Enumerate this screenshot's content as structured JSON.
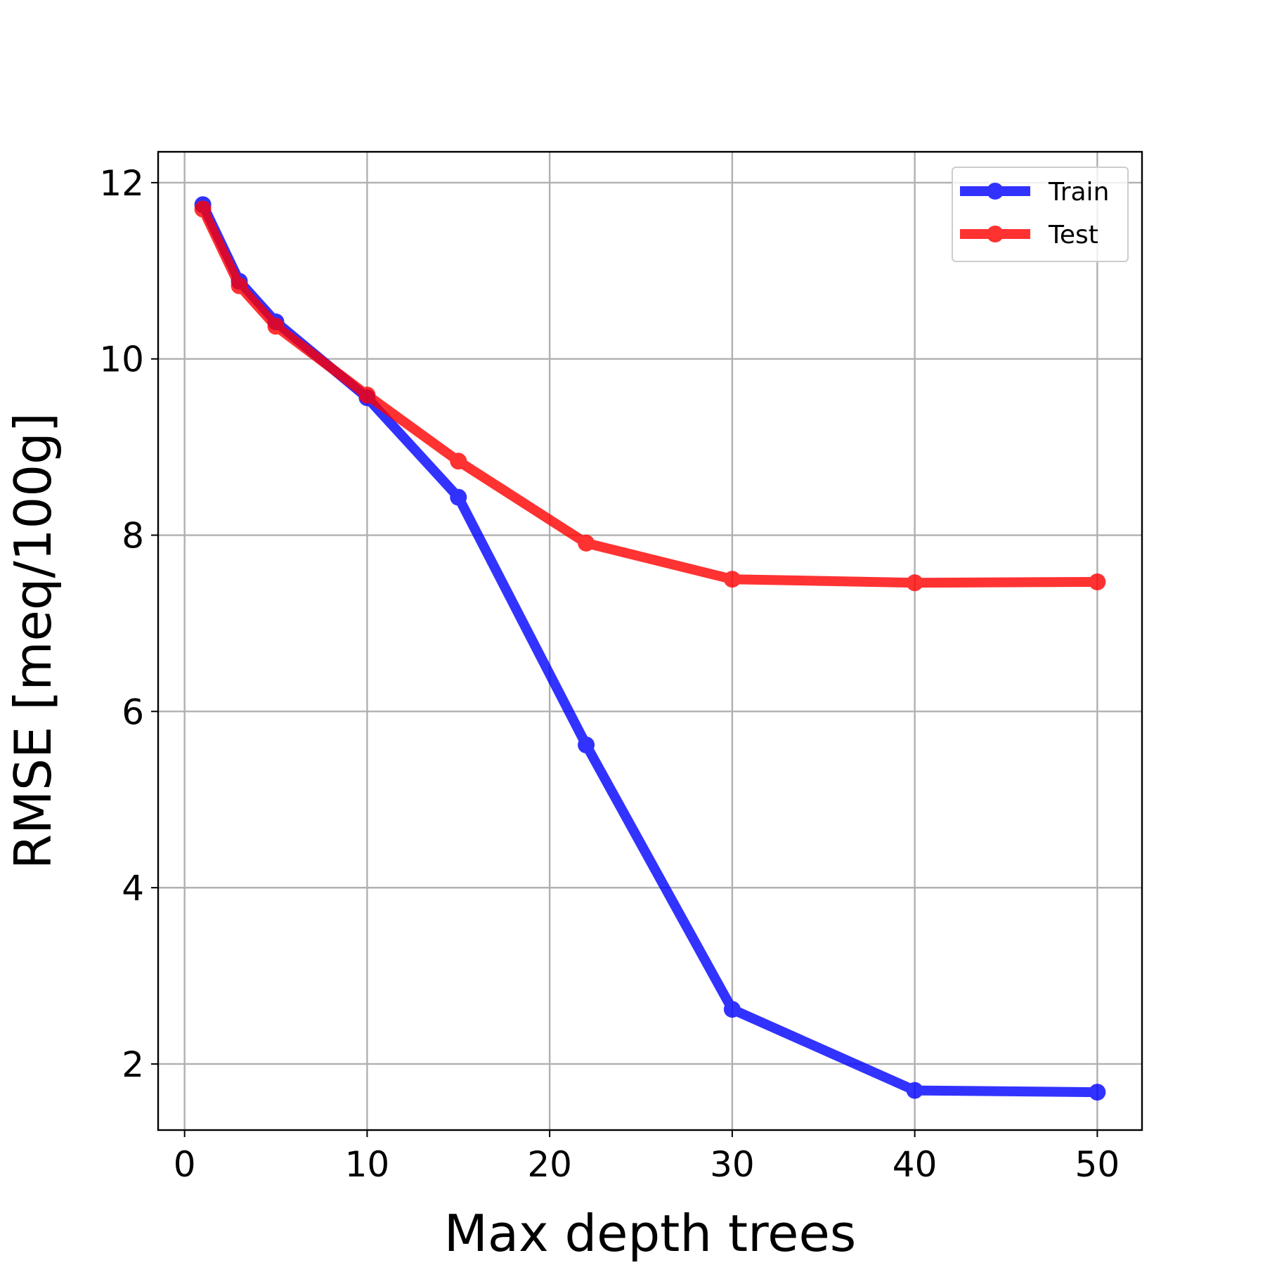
{
  "chart_data": {
    "type": "line",
    "title": "",
    "xlabel": "Max depth trees",
    "ylabel": "RMSE [meq/100g]",
    "xlim": [
      -1.45,
      52.45
    ],
    "ylim": [
      1.25,
      12.35
    ],
    "xticks": [
      0,
      10,
      20,
      30,
      40,
      50
    ],
    "yticks": [
      2,
      4,
      6,
      8,
      10,
      12
    ],
    "grid": true,
    "legend_position": "top-right",
    "x": [
      1,
      3,
      5,
      10,
      15,
      22,
      30,
      40,
      50
    ],
    "series": [
      {
        "name": "Train",
        "color": "#0000ff",
        "values": [
          11.75,
          10.88,
          10.42,
          9.56,
          8.43,
          5.62,
          2.62,
          1.7,
          1.68
        ]
      },
      {
        "name": "Test",
        "color": "#ff0000",
        "values": [
          11.7,
          10.83,
          10.37,
          9.59,
          8.84,
          7.91,
          7.5,
          7.46,
          7.47
        ]
      }
    ]
  }
}
